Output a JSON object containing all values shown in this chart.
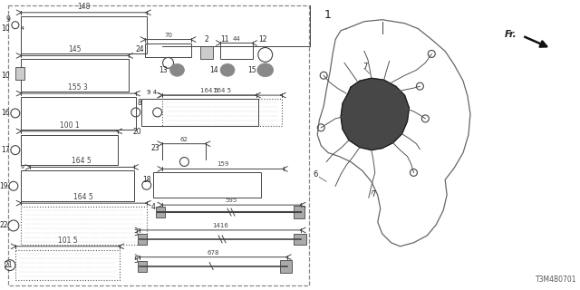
{
  "bg_color": "#ffffff",
  "line_color": "#444444",
  "text_color": "#222222",
  "diagram_id": "T3M4B0701"
}
